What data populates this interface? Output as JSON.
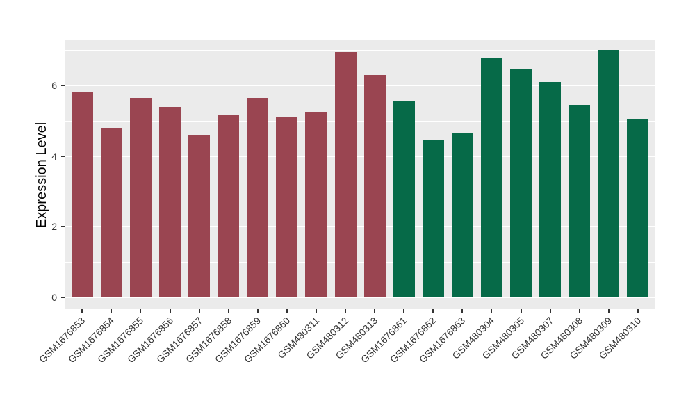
{
  "chart_data": {
    "type": "bar",
    "title": "",
    "xlabel": "",
    "ylabel": "Expression Level",
    "ylim": [
      0,
      7.3
    ],
    "yticks": [
      0,
      2,
      4,
      6
    ],
    "yticks_minor": [
      1,
      3,
      5,
      7
    ],
    "grid": true,
    "legend_position": "none",
    "panel_bg": "#EBEBEB",
    "grid_color": "#FFFFFF",
    "tick_color": "#333333",
    "group_colors": {
      "group1": "#9A4551",
      "group2": "#066A48"
    },
    "categories": [
      "GSM1676853",
      "GSM1676854",
      "GSM1676855",
      "GSM1676856",
      "GSM1676857",
      "GSM1676858",
      "GSM1676859",
      "GSM1676860",
      "GSM480311",
      "GSM480312",
      "GSM480313",
      "GSM1676861",
      "GSM1676862",
      "GSM1676863",
      "GSM480304",
      "GSM480305",
      "GSM480307",
      "GSM480308",
      "GSM480309",
      "GSM480310"
    ],
    "values": [
      5.8,
      4.8,
      5.65,
      5.4,
      4.6,
      5.15,
      5.65,
      5.1,
      5.25,
      6.95,
      6.3,
      5.55,
      4.45,
      4.65,
      6.8,
      6.45,
      6.1,
      5.45,
      7.0,
      5.05
    ],
    "bar_groups": [
      "group1",
      "group1",
      "group1",
      "group1",
      "group1",
      "group1",
      "group1",
      "group1",
      "group1",
      "group1",
      "group1",
      "group2",
      "group2",
      "group2",
      "group2",
      "group2",
      "group2",
      "group2",
      "group2",
      "group2"
    ]
  }
}
